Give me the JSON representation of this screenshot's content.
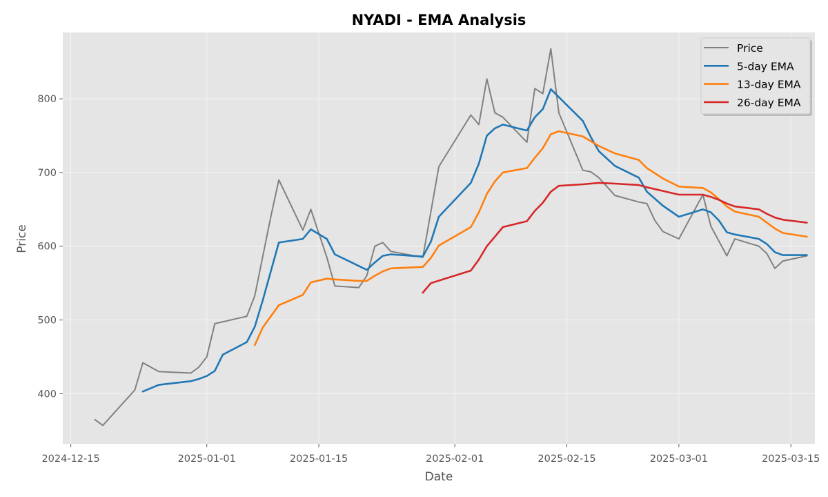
{
  "chart_data": {
    "type": "line",
    "title": "NYADI - EMA Analysis",
    "xlabel": "Date",
    "ylabel": "Price",
    "xlim": [
      "2024-12-14",
      "2025-03-18"
    ],
    "ylim": [
      332,
      890
    ],
    "x_ticks": [
      "2024-12-15",
      "2025-01-01",
      "2025-01-15",
      "2025-02-01",
      "2025-02-15",
      "2025-03-01",
      "2025-03-15"
    ],
    "y_ticks": [
      400,
      500,
      600,
      700,
      800
    ],
    "grid": true,
    "legend_position": "top-right",
    "series": [
      {
        "name": "Price",
        "color": "#808080",
        "points": [
          [
            "2024-12-18",
            365
          ],
          [
            "2024-12-19",
            357
          ],
          [
            "2024-12-23",
            405
          ],
          [
            "2024-12-24",
            442
          ],
          [
            "2024-12-26",
            430
          ],
          [
            "2024-12-30",
            428
          ],
          [
            "2024-12-31",
            436
          ],
          [
            "2025-01-01",
            450
          ],
          [
            "2025-01-02",
            495
          ],
          [
            "2025-01-06",
            505
          ],
          [
            "2025-01-07",
            533
          ],
          [
            "2025-01-09",
            640
          ],
          [
            "2025-01-10",
            690
          ],
          [
            "2025-01-13",
            622
          ],
          [
            "2025-01-14",
            650
          ],
          [
            "2025-01-16",
            585
          ],
          [
            "2025-01-17",
            546
          ],
          [
            "2025-01-20",
            544
          ],
          [
            "2025-01-21",
            560
          ],
          [
            "2025-01-22",
            600
          ],
          [
            "2025-01-23",
            605
          ],
          [
            "2025-01-24",
            593
          ],
          [
            "2025-01-28",
            585
          ],
          [
            "2025-01-30",
            708
          ],
          [
            "2025-02-03",
            778
          ],
          [
            "2025-02-04",
            765
          ],
          [
            "2025-02-05",
            827
          ],
          [
            "2025-02-06",
            781
          ],
          [
            "2025-02-07",
            775
          ],
          [
            "2025-02-10",
            741
          ],
          [
            "2025-02-11",
            814
          ],
          [
            "2025-02-12",
            807
          ],
          [
            "2025-02-13",
            868
          ],
          [
            "2025-02-14",
            781
          ],
          [
            "2025-02-17",
            703
          ],
          [
            "2025-02-18",
            701
          ],
          [
            "2025-02-19",
            693
          ],
          [
            "2025-02-21",
            669
          ],
          [
            "2025-02-24",
            660
          ],
          [
            "2025-02-25",
            658
          ],
          [
            "2025-02-26",
            635
          ],
          [
            "2025-02-27",
            620
          ],
          [
            "2025-03-01",
            610
          ],
          [
            "2025-03-03",
            650
          ],
          [
            "2025-03-04",
            670
          ],
          [
            "2025-03-05",
            627
          ],
          [
            "2025-03-07",
            587
          ],
          [
            "2025-03-08",
            610
          ],
          [
            "2025-03-11",
            600
          ],
          [
            "2025-03-12",
            590
          ],
          [
            "2025-03-13",
            570
          ],
          [
            "2025-03-14",
            580
          ],
          [
            "2025-03-17",
            587
          ]
        ]
      },
      {
        "name": "5-day EMA",
        "color": "#1f77b4",
        "points": [
          [
            "2024-12-24",
            403
          ],
          [
            "2024-12-26",
            412
          ],
          [
            "2024-12-30",
            417
          ],
          [
            "2024-12-31",
            420
          ],
          [
            "2025-01-01",
            424
          ],
          [
            "2025-01-02",
            431
          ],
          [
            "2025-01-03",
            453
          ],
          [
            "2025-01-06",
            470
          ],
          [
            "2025-01-07",
            491
          ],
          [
            "2025-01-08",
            527
          ],
          [
            "2025-01-10",
            605
          ],
          [
            "2025-01-13",
            610
          ],
          [
            "2025-01-14",
            623
          ],
          [
            "2025-01-16",
            610
          ],
          [
            "2025-01-17",
            589
          ],
          [
            "2025-01-21",
            568
          ],
          [
            "2025-01-22",
            578
          ],
          [
            "2025-01-23",
            587
          ],
          [
            "2025-01-24",
            589
          ],
          [
            "2025-01-28",
            586
          ],
          [
            "2025-01-29",
            606
          ],
          [
            "2025-01-30",
            640
          ],
          [
            "2025-02-03",
            686
          ],
          [
            "2025-02-04",
            712
          ],
          [
            "2025-02-05",
            750
          ],
          [
            "2025-02-06",
            760
          ],
          [
            "2025-02-07",
            765
          ],
          [
            "2025-02-10",
            757
          ],
          [
            "2025-02-11",
            775
          ],
          [
            "2025-02-12",
            786
          ],
          [
            "2025-02-13",
            813
          ],
          [
            "2025-02-17",
            770
          ],
          [
            "2025-02-18",
            748
          ],
          [
            "2025-02-19",
            729
          ],
          [
            "2025-02-21",
            709
          ],
          [
            "2025-02-24",
            693
          ],
          [
            "2025-02-25",
            674
          ],
          [
            "2025-02-27",
            655
          ],
          [
            "2025-03-01",
            640
          ],
          [
            "2025-03-04",
            650
          ],
          [
            "2025-03-05",
            646
          ],
          [
            "2025-03-06",
            635
          ],
          [
            "2025-03-07",
            619
          ],
          [
            "2025-03-08",
            616
          ],
          [
            "2025-03-11",
            610
          ],
          [
            "2025-03-12",
            603
          ],
          [
            "2025-03-13",
            592
          ],
          [
            "2025-03-14",
            588
          ],
          [
            "2025-03-17",
            588
          ]
        ]
      },
      {
        "name": "13-day EMA",
        "color": "#ff7f0e",
        "points": [
          [
            "2025-01-07",
            466
          ],
          [
            "2025-01-08",
            490
          ],
          [
            "2025-01-10",
            520
          ],
          [
            "2025-01-13",
            534
          ],
          [
            "2025-01-14",
            551
          ],
          [
            "2025-01-16",
            556
          ],
          [
            "2025-01-17",
            555
          ],
          [
            "2025-01-20",
            553
          ],
          [
            "2025-01-21",
            553
          ],
          [
            "2025-01-22",
            560
          ],
          [
            "2025-01-23",
            566
          ],
          [
            "2025-01-24",
            570
          ],
          [
            "2025-01-28",
            572
          ],
          [
            "2025-01-29",
            584
          ],
          [
            "2025-01-30",
            601
          ],
          [
            "2025-02-03",
            626
          ],
          [
            "2025-02-04",
            646
          ],
          [
            "2025-02-05",
            671
          ],
          [
            "2025-02-06",
            688
          ],
          [
            "2025-02-07",
            700
          ],
          [
            "2025-02-10",
            706
          ],
          [
            "2025-02-11",
            720
          ],
          [
            "2025-02-12",
            733
          ],
          [
            "2025-02-13",
            752
          ],
          [
            "2025-02-14",
            756
          ],
          [
            "2025-02-17",
            749
          ],
          [
            "2025-02-19",
            736
          ],
          [
            "2025-02-21",
            726
          ],
          [
            "2025-02-24",
            717
          ],
          [
            "2025-02-25",
            706
          ],
          [
            "2025-02-27",
            692
          ],
          [
            "2025-03-01",
            681
          ],
          [
            "2025-03-04",
            679
          ],
          [
            "2025-03-05",
            673
          ],
          [
            "2025-03-06",
            664
          ],
          [
            "2025-03-07",
            654
          ],
          [
            "2025-03-08",
            647
          ],
          [
            "2025-03-11",
            640
          ],
          [
            "2025-03-12",
            632
          ],
          [
            "2025-03-13",
            624
          ],
          [
            "2025-03-14",
            618
          ],
          [
            "2025-03-17",
            613
          ]
        ]
      },
      {
        "name": "26-day EMA",
        "color": "#d62728",
        "points": [
          [
            "2025-01-28",
            537
          ],
          [
            "2025-01-29",
            550
          ],
          [
            "2025-02-03",
            567
          ],
          [
            "2025-02-04",
            582
          ],
          [
            "2025-02-05",
            600
          ],
          [
            "2025-02-06",
            613
          ],
          [
            "2025-02-07",
            626
          ],
          [
            "2025-02-10",
            634
          ],
          [
            "2025-02-11",
            648
          ],
          [
            "2025-02-12",
            659
          ],
          [
            "2025-02-13",
            674
          ],
          [
            "2025-02-14",
            682
          ],
          [
            "2025-02-17",
            684
          ],
          [
            "2025-02-19",
            686
          ],
          [
            "2025-02-21",
            685
          ],
          [
            "2025-02-24",
            683
          ],
          [
            "2025-02-25",
            680
          ],
          [
            "2025-02-27",
            675
          ],
          [
            "2025-03-01",
            670
          ],
          [
            "2025-03-04",
            670
          ],
          [
            "2025-03-05",
            667
          ],
          [
            "2025-03-06",
            663
          ],
          [
            "2025-03-07",
            658
          ],
          [
            "2025-03-08",
            654
          ],
          [
            "2025-03-11",
            650
          ],
          [
            "2025-03-12",
            644
          ],
          [
            "2025-03-13",
            639
          ],
          [
            "2025-03-14",
            636
          ],
          [
            "2025-03-17",
            632
          ]
        ]
      }
    ]
  }
}
